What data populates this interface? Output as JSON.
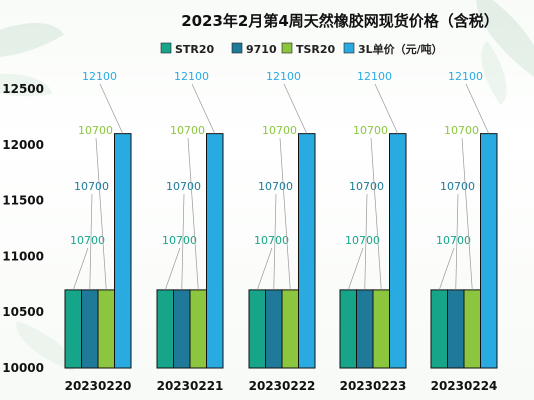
{
  "chart_data": {
    "type": "bar",
    "title": "2023年2月第4周天然橡胶网现货价格（含税）",
    "categories": [
      "20230220",
      "20230221",
      "20230222",
      "20230223",
      "20230224"
    ],
    "series": [
      {
        "name": "STR20",
        "values": [
          10700,
          10700,
          10700,
          10700,
          10700
        ],
        "color": "#17a589"
      },
      {
        "name": "9710",
        "values": [
          10700,
          10700,
          10700,
          10700,
          10700
        ],
        "color": "#1f7a99"
      },
      {
        "name": "TSR20",
        "values": [
          10700,
          10700,
          10700,
          10700,
          10700
        ],
        "color": "#8cc63f"
      },
      {
        "name": "3L单价（元/吨）",
        "values": [
          12100,
          12100,
          12100,
          12100,
          12100
        ],
        "color": "#29abe2"
      }
    ],
    "ylim": [
      10000,
      12500
    ],
    "yticks": [
      10000,
      10500,
      11000,
      11500,
      12000,
      12500
    ],
    "label_colors": [
      "#17a589",
      "#1f7a99",
      "#8cc63f",
      "#29abe2"
    ],
    "legend_position": "top",
    "grid": false
  }
}
